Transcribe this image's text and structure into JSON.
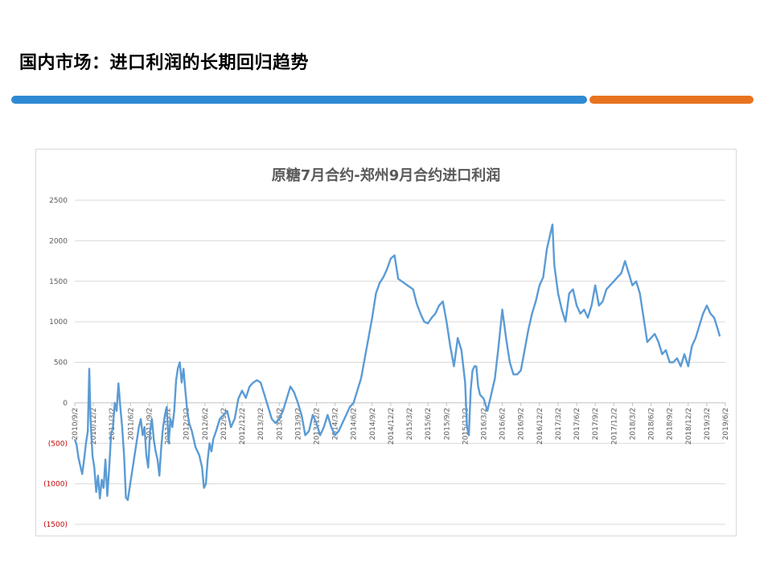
{
  "page": {
    "title": "国内市场：进口利润的长期回归趋势"
  },
  "colors": {
    "title_bar_blue": "#2f8ad3",
    "title_bar_orange": "#e8731f",
    "series_line": "#5b9bd5",
    "negative_tick": "#c00000",
    "grid": "#d9d9d9"
  },
  "chart_data": {
    "type": "line",
    "title": "原糖7月合约-郑州9月合约进口利润",
    "xlabel": "",
    "ylabel": "",
    "ylim": [
      -1500,
      2500
    ],
    "grid": true,
    "legend": "none",
    "y_ticks": [
      {
        "value": 2500,
        "label": "2500"
      },
      {
        "value": 2000,
        "label": "2000"
      },
      {
        "value": 1500,
        "label": "1500"
      },
      {
        "value": 1000,
        "label": "1000"
      },
      {
        "value": 500,
        "label": "500"
      },
      {
        "value": 0,
        "label": "0"
      },
      {
        "value": -500,
        "label": "(500)"
      },
      {
        "value": -1000,
        "label": "(1000)"
      },
      {
        "value": -1500,
        "label": "(1500)"
      }
    ],
    "x_tick_labels": [
      "2010/9/2",
      "2010/12/2",
      "2011/3/2",
      "2011/6/2",
      "2011/9/2",
      "2011/12/2",
      "2012/3/2",
      "2012/6/2",
      "2012/9/2",
      "2012/12/2",
      "2013/3/2",
      "2013/6/2",
      "2013/9/2",
      "2013/12/2",
      "2014/3/2",
      "2014/6/2",
      "2014/9/2",
      "2014/12/2",
      "2015/3/2",
      "2015/6/2",
      "2015/9/2",
      "2015/12/2",
      "2016/3/2",
      "2016/6/2",
      "2016/9/2",
      "2016/12/2",
      "2017/3/2",
      "2017/6/2",
      "2017/9/2",
      "2017/12/2",
      "2018/3/2",
      "2018/6/2",
      "2018/9/2",
      "2018/12/2",
      "2019/3/2",
      "2019/6/2"
    ],
    "series": [
      {
        "values": [
          [
            0,
            -450
          ],
          [
            0.1,
            -520
          ],
          [
            0.2,
            -680
          ],
          [
            0.3,
            -780
          ],
          [
            0.4,
            -880
          ],
          [
            0.5,
            -700
          ],
          [
            0.6,
            -500
          ],
          [
            0.7,
            -350
          ],
          [
            0.78,
            420
          ],
          [
            0.85,
            -200
          ],
          [
            0.95,
            -650
          ],
          [
            1.05,
            -800
          ],
          [
            1.15,
            -1100
          ],
          [
            1.25,
            -900
          ],
          [
            1.35,
            -1180
          ],
          [
            1.45,
            -950
          ],
          [
            1.55,
            -1050
          ],
          [
            1.65,
            -700
          ],
          [
            1.75,
            -1150
          ],
          [
            1.85,
            -800
          ],
          [
            1.95,
            -400
          ],
          [
            2.05,
            -300
          ],
          [
            2.15,
            0
          ],
          [
            2.25,
            -100
          ],
          [
            2.35,
            240
          ],
          [
            2.45,
            -50
          ],
          [
            2.55,
            -300
          ],
          [
            2.65,
            -650
          ],
          [
            2.75,
            -1170
          ],
          [
            2.85,
            -1200
          ],
          [
            3.05,
            -900
          ],
          [
            3.25,
            -600
          ],
          [
            3.45,
            -300
          ],
          [
            3.55,
            -200
          ],
          [
            3.65,
            -400
          ],
          [
            3.75,
            -300
          ],
          [
            3.85,
            -650
          ],
          [
            3.95,
            -800
          ],
          [
            4.05,
            -350
          ],
          [
            4.15,
            -200
          ],
          [
            4.25,
            -450
          ],
          [
            4.35,
            -600
          ],
          [
            4.45,
            -700
          ],
          [
            4.55,
            -900
          ],
          [
            4.65,
            -550
          ],
          [
            4.75,
            -300
          ],
          [
            4.85,
            -150
          ],
          [
            4.95,
            -50
          ],
          [
            5.05,
            -500
          ],
          [
            5.15,
            -200
          ],
          [
            5.25,
            -300
          ],
          [
            5.35,
            -100
          ],
          [
            5.45,
            280
          ],
          [
            5.55,
            430
          ],
          [
            5.65,
            500
          ],
          [
            5.75,
            250
          ],
          [
            5.85,
            420
          ],
          [
            5.95,
            150
          ],
          [
            6.05,
            -100
          ],
          [
            6.15,
            -250
          ],
          [
            6.3,
            -350
          ],
          [
            6.5,
            -550
          ],
          [
            6.7,
            -650
          ],
          [
            6.85,
            -800
          ],
          [
            6.95,
            -1050
          ],
          [
            7.05,
            -1000
          ],
          [
            7.15,
            -700
          ],
          [
            7.25,
            -500
          ],
          [
            7.35,
            -600
          ],
          [
            7.45,
            -450
          ],
          [
            7.6,
            -350
          ],
          [
            7.8,
            -200
          ],
          [
            8.0,
            -150
          ],
          [
            8.2,
            -100
          ],
          [
            8.4,
            -300
          ],
          [
            8.6,
            -200
          ],
          [
            8.8,
            50
          ],
          [
            9.0,
            150
          ],
          [
            9.2,
            60
          ],
          [
            9.4,
            200
          ],
          [
            9.6,
            250
          ],
          [
            9.8,
            280
          ],
          [
            10.0,
            250
          ],
          [
            10.2,
            100
          ],
          [
            10.4,
            -50
          ],
          [
            10.6,
            -200
          ],
          [
            10.8,
            -250
          ],
          [
            11.0,
            -200
          ],
          [
            11.2,
            -100
          ],
          [
            11.4,
            50
          ],
          [
            11.6,
            200
          ],
          [
            11.8,
            130
          ],
          [
            12.0,
            0
          ],
          [
            12.2,
            -150
          ],
          [
            12.4,
            -400
          ],
          [
            12.6,
            -350
          ],
          [
            12.8,
            -150
          ],
          [
            13.0,
            -250
          ],
          [
            13.2,
            -400
          ],
          [
            13.4,
            -300
          ],
          [
            13.6,
            -150
          ],
          [
            13.8,
            -300
          ],
          [
            14.0,
            -400
          ],
          [
            14.2,
            -350
          ],
          [
            14.4,
            -250
          ],
          [
            14.6,
            -150
          ],
          [
            14.8,
            -50
          ],
          [
            15.0,
            0
          ],
          [
            15.2,
            150
          ],
          [
            15.4,
            300
          ],
          [
            15.6,
            550
          ],
          [
            15.8,
            800
          ],
          [
            16.0,
            1050
          ],
          [
            16.2,
            1350
          ],
          [
            16.4,
            1480
          ],
          [
            16.6,
            1550
          ],
          [
            16.8,
            1650
          ],
          [
            17.0,
            1780
          ],
          [
            17.2,
            1820
          ],
          [
            17.4,
            1530
          ],
          [
            18.2,
            1400
          ],
          [
            18.4,
            1220
          ],
          [
            18.6,
            1100
          ],
          [
            18.8,
            1000
          ],
          [
            19.0,
            980
          ],
          [
            19.2,
            1050
          ],
          [
            19.4,
            1100
          ],
          [
            19.6,
            1200
          ],
          [
            19.8,
            1250
          ],
          [
            20.0,
            1000
          ],
          [
            20.2,
            700
          ],
          [
            20.4,
            450
          ],
          [
            20.6,
            800
          ],
          [
            20.8,
            650
          ],
          [
            21.0,
            250
          ],
          [
            21.1,
            -300
          ],
          [
            21.2,
            -400
          ],
          [
            21.3,
            150
          ],
          [
            21.4,
            400
          ],
          [
            21.5,
            450
          ],
          [
            21.6,
            450
          ],
          [
            21.7,
            200
          ],
          [
            21.8,
            100
          ],
          [
            22.0,
            50
          ],
          [
            22.2,
            -100
          ],
          [
            22.4,
            100
          ],
          [
            22.6,
            300
          ],
          [
            22.8,
            700
          ],
          [
            23.0,
            1150
          ],
          [
            23.2,
            800
          ],
          [
            23.4,
            500
          ],
          [
            23.6,
            350
          ],
          [
            23.8,
            350
          ],
          [
            24.0,
            400
          ],
          [
            24.2,
            650
          ],
          [
            24.4,
            900
          ],
          [
            24.6,
            1100
          ],
          [
            24.8,
            1250
          ],
          [
            25.0,
            1450
          ],
          [
            25.2,
            1550
          ],
          [
            25.4,
            1900
          ],
          [
            25.6,
            2100
          ],
          [
            25.7,
            2200
          ],
          [
            25.8,
            1700
          ],
          [
            26.0,
            1350
          ],
          [
            26.2,
            1150
          ],
          [
            26.4,
            1000
          ],
          [
            26.6,
            1350
          ],
          [
            26.8,
            1400
          ],
          [
            27.0,
            1200
          ],
          [
            27.2,
            1100
          ],
          [
            27.4,
            1150
          ],
          [
            27.6,
            1050
          ],
          [
            27.8,
            1200
          ],
          [
            28.0,
            1450
          ],
          [
            28.2,
            1200
          ],
          [
            28.4,
            1250
          ],
          [
            28.6,
            1400
          ],
          [
            28.8,
            1450
          ],
          [
            29.0,
            1500
          ],
          [
            29.2,
            1550
          ],
          [
            29.4,
            1600
          ],
          [
            29.6,
            1750
          ],
          [
            29.8,
            1600
          ],
          [
            30.0,
            1450
          ],
          [
            30.2,
            1500
          ],
          [
            30.4,
            1350
          ],
          [
            30.6,
            1050
          ],
          [
            30.8,
            750
          ],
          [
            31.0,
            800
          ],
          [
            31.2,
            850
          ],
          [
            31.4,
            750
          ],
          [
            31.6,
            600
          ],
          [
            31.8,
            650
          ],
          [
            32.0,
            500
          ],
          [
            32.2,
            500
          ],
          [
            32.4,
            550
          ],
          [
            32.6,
            450
          ],
          [
            32.8,
            600
          ],
          [
            33.0,
            450
          ],
          [
            33.2,
            700
          ],
          [
            33.4,
            800
          ],
          [
            33.6,
            950
          ],
          [
            33.8,
            1100
          ],
          [
            34.0,
            1200
          ],
          [
            34.2,
            1100
          ],
          [
            34.4,
            1050
          ],
          [
            34.6,
            900
          ],
          [
            34.7,
            820
          ]
        ]
      }
    ]
  }
}
